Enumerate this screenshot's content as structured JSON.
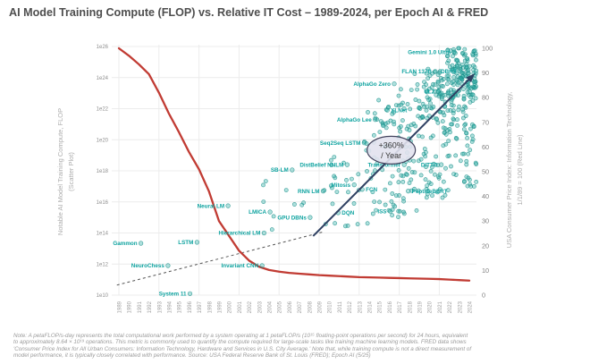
{
  "title": "AI Model Training Compute (FLOP) vs. Relative IT Cost – 1989-2024, per Epoch AI & FRED",
  "axes": {
    "x": {
      "tick_years": [
        1989,
        1990,
        1991,
        1992,
        1993,
        1994,
        1995,
        1996,
        1997,
        1998,
        1999,
        2000,
        2001,
        2002,
        2003,
        2004,
        2005,
        2006,
        2007,
        2008,
        2009,
        2010,
        2011,
        2012,
        2013,
        2014,
        2015,
        2016,
        2017,
        2018,
        2019,
        2020,
        2021,
        2022,
        2023,
        2024
      ],
      "grid_years": [
        1989,
        1993,
        1997,
        2001,
        2005,
        2009,
        2013,
        2017,
        2021
      ]
    },
    "y_left": {
      "title_line1": "Notable AI Model Training Compute, FLOP",
      "title_line2": "(Scatter Plot)",
      "ticks": [
        {
          "label": "1e26",
          "exp": 26
        },
        {
          "label": "1e24",
          "exp": 24
        },
        {
          "label": "1e22",
          "exp": 22
        },
        {
          "label": "1e20",
          "exp": 20
        },
        {
          "label": "1e18",
          "exp": 18
        },
        {
          "label": "1e16",
          "exp": 16
        },
        {
          "label": "1e14",
          "exp": 14
        },
        {
          "label": "1e12",
          "exp": 12
        },
        {
          "label": "1e10",
          "exp": 10
        }
      ]
    },
    "y_right": {
      "title_line1": "USA Consumer Price Index: Information Technology,",
      "title_line2": "1/1/89 = 100 (Red Line)",
      "ticks": [
        100,
        90,
        80,
        70,
        60,
        50,
        40,
        30,
        20,
        10,
        0
      ]
    }
  },
  "chart_data": {
    "type": "scatter+line",
    "title": "AI Model Training Compute (FLOP) vs. Relative IT Cost – 1989-2024",
    "x_range": [
      1988.5,
      2025.2
    ],
    "y_left_log_range": [
      10,
      26
    ],
    "y_right_range": [
      0,
      100
    ],
    "labeled_points": [
      {
        "name": "Gammon",
        "year": 1991.2,
        "exp": 13.34,
        "flop": "2.2e13",
        "side": "left"
      },
      {
        "name": "NeuroChess",
        "year": 1993.9,
        "exp": 11.9,
        "flop": "8e11",
        "side": "left"
      },
      {
        "name": "System 11",
        "year": 1996.1,
        "exp": 10.1,
        "flop": "1.3e10",
        "side": "left"
      },
      {
        "name": "LSTM",
        "year": 1996.8,
        "exp": 13.4,
        "flop": "2.5e13",
        "side": "left"
      },
      {
        "name": "Neural LM",
        "year": 1999.9,
        "exp": 15.75,
        "flop": "5.6e15",
        "side": "left"
      },
      {
        "name": "Invariant CNN",
        "year": 2003.3,
        "exp": 11.9,
        "flop": "8e11",
        "side": "left"
      },
      {
        "name": "Hierarchical LM",
        "year": 2003.5,
        "exp": 14.0,
        "flop": "1e14",
        "side": "left"
      },
      {
        "name": "LMICA",
        "year": 2004.1,
        "exp": 15.35,
        "flop": "2.2e15",
        "side": "left"
      },
      {
        "name": "SB-LM",
        "year": 2006.3,
        "exp": 18.06,
        "flop": "1.1e18",
        "side": "left"
      },
      {
        "name": "GPU DBNs",
        "year": 2008.1,
        "exp": 15.0,
        "flop": "1e15",
        "side": "left"
      },
      {
        "name": "RNN LM",
        "year": 2009.4,
        "exp": 16.7,
        "flop": "5e16",
        "side": "left"
      },
      {
        "name": "DQN",
        "year": 2010.9,
        "exp": 15.3,
        "flop": "2e15",
        "side": "right"
      },
      {
        "name": "DistBelief NNLM",
        "year": 2011.8,
        "exp": 18.4,
        "flop": "2.5e18",
        "side": "left"
      },
      {
        "name": "Mitosis",
        "year": 2012.5,
        "exp": 17.1,
        "flop": "1.3e17",
        "side": "left"
      },
      {
        "name": "FCN",
        "year": 2013.3,
        "exp": 16.8,
        "flop": "6.3e16",
        "side": "right"
      },
      {
        "name": "Seq2Seq LSTM",
        "year": 2013.5,
        "exp": 19.8,
        "flop": "6.3e19",
        "side": "left"
      },
      {
        "name": "AlphaGo Lee",
        "year": 2014.6,
        "exp": 21.3,
        "flop": "2e21",
        "side": "left"
      },
      {
        "name": "XLNet",
        "year": 2015.8,
        "exp": 21.9,
        "flop": "8e21",
        "side": "right"
      },
      {
        "name": "ISS",
        "year": 2016.1,
        "exp": 15.4,
        "flop": "2.5e15",
        "side": "left"
      },
      {
        "name": "AlphaGo Zero",
        "year": 2016.5,
        "exp": 23.6,
        "flop": "4e23",
        "side": "left"
      },
      {
        "name": "Transformer",
        "year": 2017.5,
        "exp": 18.4,
        "flop": "2.5e18",
        "side": "left"
      },
      {
        "name": "PeptideBERT",
        "year": 2017.9,
        "exp": 16.7,
        "flop": "5e16",
        "side": "right"
      },
      {
        "name": "FLAN 137B",
        "year": 2020.6,
        "exp": 24.4,
        "flop": "2.5e24",
        "side": "left"
      },
      {
        "name": "UL2",
        "year": 2020.9,
        "exp": 23.1,
        "flop": "1.3e23",
        "side": "left"
      },
      {
        "name": "DITTO",
        "year": 2021.2,
        "exp": 18.4,
        "flop": "2.5e18",
        "side": "left"
      },
      {
        "name": "DBRX",
        "year": 2023.1,
        "exp": 24.4,
        "flop": "2.5e24",
        "side": "left"
      },
      {
        "name": "Gemini 1.0 Ultra",
        "year": 2022.5,
        "exp": 25.65,
        "flop": "4.5e25",
        "side": "left"
      }
    ],
    "cpi_line": {
      "name": "USA CPI: Information Technology (1/1/89 = 100)",
      "years": [
        1989,
        1990,
        1991,
        1992,
        1993,
        1994,
        1995,
        1996,
        1997,
        1998,
        1999,
        2000,
        2001,
        2002,
        2003,
        2004,
        2005,
        2006,
        2007,
        2008,
        2009,
        2010,
        2011,
        2012,
        2013,
        2014,
        2015,
        2016,
        2017,
        2018,
        2019,
        2020,
        2021,
        2022,
        2023,
        2024
      ],
      "values": [
        100,
        97,
        93.5,
        89.5,
        82,
        73.5,
        66,
        58,
        51,
        42,
        30,
        24,
        18,
        14,
        11.5,
        10.2,
        9.5,
        9,
        8.7,
        8.4,
        8.1,
        7.9,
        7.7,
        7.5,
        7.3,
        7.2,
        7.1,
        7.0,
        6.9,
        6.8,
        6.7,
        6.6,
        6.5,
        6.3,
        6.1,
        5.9
      ]
    },
    "trend_dashed": {
      "year0": 1988.8,
      "exp0": 10.65,
      "year1": 2009.3,
      "exp1": 14.05
    },
    "trend_arrow": {
      "year0": 2008.4,
      "exp0": 13.8,
      "year1": 2024.3,
      "exp1": 24.1
    },
    "annotation": {
      "line1": "+360%",
      "line2": "/ Year",
      "year": 2016.2,
      "exp": 19.33
    },
    "cloud_regions_approx": [
      {
        "year0": 2009.5,
        "year1": 2013.5,
        "exp0": 14.3,
        "exp1": 19.5,
        "count": 22
      },
      {
        "year0": 2013.5,
        "year1": 2016.5,
        "exp0": 14.5,
        "exp1": 21.8,
        "count": 42
      },
      {
        "year0": 2016.5,
        "year1": 2019.5,
        "exp0": 15.0,
        "exp1": 23.3,
        "count": 65
      },
      {
        "year0": 2019.5,
        "year1": 2022.3,
        "exp0": 16.0,
        "exp1": 24.6,
        "count": 90
      },
      {
        "year0": 2022.3,
        "year1": 2024.7,
        "exp0": 17.0,
        "exp1": 25.3,
        "count": 85
      },
      {
        "year0": 2021.8,
        "year1": 2024.7,
        "exp0": 22.6,
        "exp1": 25.9,
        "count": 110
      },
      {
        "year0": 2003.0,
        "year1": 2009.5,
        "exp0": 13.2,
        "exp1": 17.6,
        "count": 9
      },
      {
        "year0": 2014.3,
        "year1": 2017.6,
        "exp0": 20.2,
        "exp1": 22.6,
        "count": 16
      },
      {
        "year0": 2018.3,
        "year1": 2022.3,
        "exp0": 21.3,
        "exp1": 24.4,
        "count": 36
      }
    ]
  },
  "note_lines": [
    "Note: A petaFLOP/s-day represents the total computational work performed by a system operating at 1 petaFLOP/s (10¹⁵ floating-point operations per second) for 24 hours, equivalent",
    "to approximately 8.64 × 10¹⁹ operations. This metric is commonly used to quantify the compute required for large-scale tasks like training machine learning models. FRED data shows",
    "'Consumer Price Index for All Urban Consumers: Information Technology, Hardware and Services in U.S. City Average.' Note that, while training compute is not a direct measurement of",
    "model performance, it is typically closely correlated with performance. Source: USA Federal Reserve Bank of St. Louis (FRED); Epoch AI (5/25)"
  ],
  "colors": {
    "title": "#4e4e4e",
    "scatter_fill": "#2aada6",
    "scatter_stroke": "#1a8d87",
    "point_label": "#0fa3a0",
    "cpi_line": "#c13b33",
    "trend_arrow": "#2f4062",
    "trend_dashed": "#555555",
    "grid": "#ececec",
    "annotation_fill": "#e2e2ee",
    "annotation_stroke": "#44445e"
  }
}
